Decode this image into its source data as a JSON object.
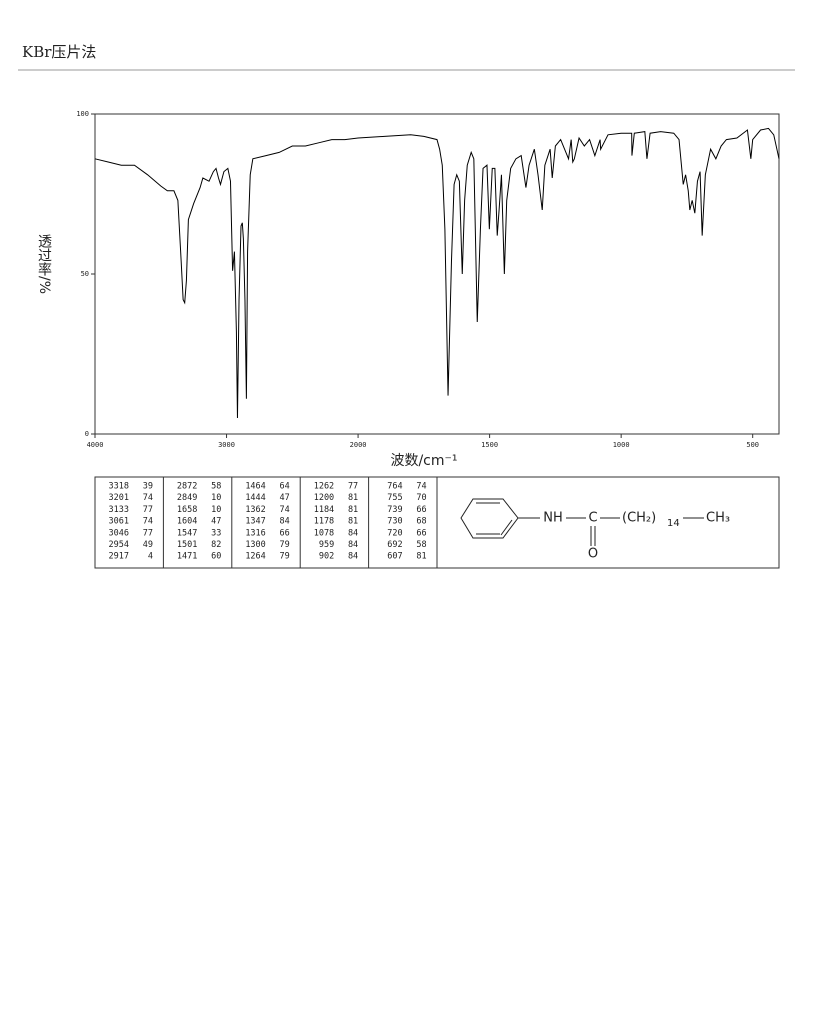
{
  "header": {
    "title": "KBr压片法"
  },
  "chart_data": {
    "type": "line",
    "xlabel": "波数/cm⁻¹",
    "ylabel": "透过率/%",
    "color": "#000000",
    "xlim": [
      4000,
      400
    ],
    "ylim": [
      0,
      100
    ],
    "xticks": [
      4000,
      3000,
      2000,
      1500,
      1000,
      500
    ],
    "yticks": [
      0,
      50,
      100
    ],
    "x": [
      4000,
      3900,
      3800,
      3700,
      3600,
      3500,
      3450,
      3400,
      3370,
      3345,
      3330,
      3318,
      3305,
      3290,
      3250,
      3201,
      3180,
      3133,
      3100,
      3080,
      3061,
      3046,
      3020,
      2990,
      2970,
      2954,
      2940,
      2925,
      2917,
      2905,
      2890,
      2880,
      2872,
      2860,
      2849,
      2840,
      2820,
      2800,
      2700,
      2600,
      2500,
      2400,
      2300,
      2200,
      2100,
      2000,
      1900,
      1800,
      1750,
      1700,
      1690,
      1680,
      1670,
      1658,
      1645,
      1635,
      1625,
      1615,
      1604,
      1595,
      1585,
      1570,
      1560,
      1547,
      1535,
      1525,
      1510,
      1501,
      1490,
      1480,
      1471,
      1464,
      1455,
      1444,
      1435,
      1420,
      1400,
      1380,
      1362,
      1350,
      1330,
      1316,
      1300,
      1290,
      1270,
      1262,
      1250,
      1230,
      1200,
      1190,
      1184,
      1178,
      1160,
      1140,
      1120,
      1100,
      1080,
      1078,
      1050,
      1000,
      960,
      959,
      950,
      910,
      902,
      890,
      850,
      800,
      780,
      764,
      755,
      745,
      739,
      730,
      720,
      710,
      700,
      692,
      680,
      660,
      640,
      620,
      600,
      560,
      520,
      507,
      500,
      470,
      440,
      420,
      400
    ],
    "values": [
      86,
      85,
      84,
      84,
      81,
      77.5,
      76,
      76,
      73,
      54,
      42,
      41,
      48,
      67,
      72,
      77,
      80,
      79,
      82,
      83,
      80,
      78,
      82,
      83,
      79,
      51,
      57,
      32,
      5,
      42,
      65,
      66,
      61,
      42,
      11,
      57,
      81,
      86,
      87,
      88,
      90,
      90,
      91,
      92,
      92,
      92.5,
      93,
      93.5,
      93,
      92,
      89,
      84,
      64,
      12,
      54,
      78,
      81,
      79,
      50,
      73,
      84,
      88,
      86,
      35,
      64,
      83,
      84,
      64,
      83,
      83,
      62,
      70,
      81,
      50,
      73,
      83,
      86,
      87,
      77,
      84,
      89,
      81,
      70,
      84,
      89,
      80,
      90,
      92,
      86,
      92,
      85,
      86,
      92.5,
      90,
      92,
      87,
      92,
      89,
      93.5,
      94,
      94,
      87,
      94,
      94.5,
      86,
      94,
      94.5,
      94,
      92,
      78,
      81,
      76,
      70,
      73,
      69,
      79,
      82,
      62,
      81,
      89,
      86,
      90,
      92,
      92.5,
      95,
      86,
      92,
      95,
      95.5,
      93.5,
      86
    ]
  },
  "peak_table": [
    [
      [
        3318,
        39
      ],
      [
        3201,
        74
      ],
      [
        3133,
        77
      ],
      [
        3061,
        74
      ],
      [
        3046,
        77
      ],
      [
        2954,
        49
      ],
      [
        2917,
        4
      ]
    ],
    [
      [
        2872,
        58
      ],
      [
        2849,
        10
      ],
      [
        1658,
        10
      ],
      [
        1604,
        47
      ],
      [
        1547,
        33
      ],
      [
        1501,
        82
      ],
      [
        1471,
        60
      ]
    ],
    [
      [
        1464,
        64
      ],
      [
        1444,
        47
      ],
      [
        1362,
        74
      ],
      [
        1347,
        84
      ],
      [
        1316,
        66
      ],
      [
        1300,
        79
      ],
      [
        1264,
        79
      ]
    ],
    [
      [
        1262,
        77
      ],
      [
        1200,
        81
      ],
      [
        1184,
        81
      ],
      [
        1178,
        81
      ],
      [
        1078,
        84
      ],
      [
        959,
        84
      ],
      [
        902,
        84
      ]
    ],
    [
      [
        764,
        74
      ],
      [
        755,
        70
      ],
      [
        739,
        66
      ],
      [
        730,
        68
      ],
      [
        720,
        66
      ],
      [
        692,
        58
      ],
      [
        607,
        81
      ]
    ]
  ],
  "structure": {
    "nh": "NH",
    "c": "C",
    "o": "O",
    "chain": "(CH₂)",
    "n": "14",
    "end": "CH₃"
  }
}
